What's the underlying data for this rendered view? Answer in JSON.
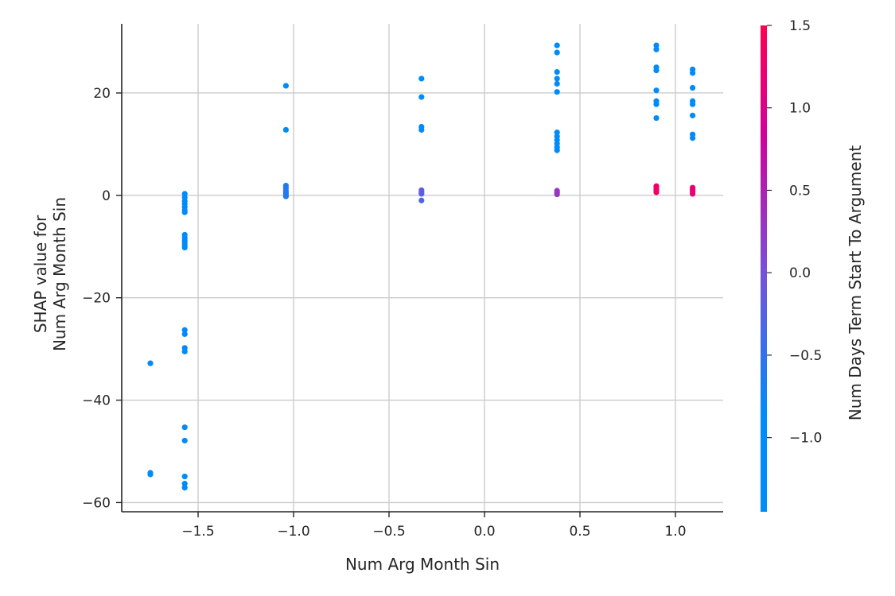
{
  "chart_data": {
    "type": "scatter",
    "xlabel": "Num  Arg Month Sin",
    "ylabel": [
      "SHAP value for",
      "Num  Arg Month Sin"
    ],
    "xlim": [
      -1.9,
      1.25
    ],
    "ylim": [
      -61.8,
      33.5
    ],
    "x_ticks": [
      -1.5,
      -1.0,
      -0.5,
      0.0,
      0.5,
      1.0
    ],
    "x_tick_labels": [
      "−1.5",
      "−1.0",
      "−0.5",
      "0.0",
      "0.5",
      "1.0"
    ],
    "y_ticks": [
      20,
      0,
      -20,
      -40,
      -60
    ],
    "y_tick_labels": [
      "20",
      "0",
      "−20",
      "−40",
      "−60"
    ],
    "grid": true,
    "colorbar": {
      "label": "Num  Days Term Start To Argument",
      "range": [
        -1.45,
        1.5
      ],
      "ticks": [
        1.5,
        1.0,
        0.5,
        0.0,
        -0.5,
        -1.0
      ],
      "tick_labels": [
        "1.5",
        "1.0",
        "0.5",
        "0.0",
        "−0.5",
        "−1.0"
      ],
      "colors": [
        "#008bfb",
        "#ff0052"
      ]
    },
    "points": [
      {
        "x": -1.75,
        "y": -32.8,
        "c": -1.2
      },
      {
        "x": -1.75,
        "y": -54.2,
        "c": -1.2
      },
      {
        "x": -1.75,
        "y": -54.5,
        "c": -1.2
      },
      {
        "x": -1.57,
        "y": 0.3,
        "c": -1.2
      },
      {
        "x": -1.57,
        "y": -0.4,
        "c": -1.2
      },
      {
        "x": -1.57,
        "y": -1.1,
        "c": -1.2
      },
      {
        "x": -1.57,
        "y": -1.7,
        "c": -1.2
      },
      {
        "x": -1.57,
        "y": -2.3,
        "c": -1.2
      },
      {
        "x": -1.57,
        "y": -2.9,
        "c": -1.2
      },
      {
        "x": -1.57,
        "y": -3.3,
        "c": -1.2
      },
      {
        "x": -1.57,
        "y": -7.7,
        "c": -1.2
      },
      {
        "x": -1.57,
        "y": -8.3,
        "c": -1.2
      },
      {
        "x": -1.57,
        "y": -8.8,
        "c": -1.2
      },
      {
        "x": -1.57,
        "y": -9.3,
        "c": -1.2
      },
      {
        "x": -1.57,
        "y": -9.8,
        "c": -1.2
      },
      {
        "x": -1.57,
        "y": -10.2,
        "c": -1.2
      },
      {
        "x": -1.57,
        "y": -26.3,
        "c": -1.2
      },
      {
        "x": -1.57,
        "y": -27.1,
        "c": -1.2
      },
      {
        "x": -1.57,
        "y": -29.8,
        "c": -1.2
      },
      {
        "x": -1.57,
        "y": -30.5,
        "c": -1.2
      },
      {
        "x": -1.57,
        "y": -45.3,
        "c": -1.2
      },
      {
        "x": -1.57,
        "y": -47.9,
        "c": -1.2
      },
      {
        "x": -1.57,
        "y": -54.9,
        "c": -1.2
      },
      {
        "x": -1.57,
        "y": -56.3,
        "c": -1.2
      },
      {
        "x": -1.57,
        "y": -57.1,
        "c": -1.2
      },
      {
        "x": -1.04,
        "y": 21.4,
        "c": -1.2
      },
      {
        "x": -1.04,
        "y": 12.8,
        "c": -1.2
      },
      {
        "x": -1.04,
        "y": 1.9,
        "c": -0.6
      },
      {
        "x": -1.04,
        "y": 1.4,
        "c": -0.6
      },
      {
        "x": -1.04,
        "y": 0.9,
        "c": -0.6
      },
      {
        "x": -1.04,
        "y": 0.5,
        "c": -0.6
      },
      {
        "x": -1.04,
        "y": 0.1,
        "c": -0.6
      },
      {
        "x": -1.04,
        "y": -0.2,
        "c": -0.6
      },
      {
        "x": -0.33,
        "y": 22.8,
        "c": -1.2
      },
      {
        "x": -0.33,
        "y": 19.2,
        "c": -1.2
      },
      {
        "x": -0.33,
        "y": 13.4,
        "c": -1.2
      },
      {
        "x": -0.33,
        "y": 12.8,
        "c": -1.2
      },
      {
        "x": -0.33,
        "y": 1.0,
        "c": -0.2
      },
      {
        "x": -0.33,
        "y": 0.6,
        "c": -0.2
      },
      {
        "x": -0.33,
        "y": 0.3,
        "c": -0.2
      },
      {
        "x": -0.33,
        "y": -1.0,
        "c": -0.3
      },
      {
        "x": 0.38,
        "y": 29.3,
        "c": -1.2
      },
      {
        "x": 0.38,
        "y": 27.9,
        "c": -1.2
      },
      {
        "x": 0.38,
        "y": 24.1,
        "c": -1.2
      },
      {
        "x": 0.38,
        "y": 22.8,
        "c": -1.2
      },
      {
        "x": 0.38,
        "y": 21.8,
        "c": -1.2
      },
      {
        "x": 0.38,
        "y": 20.2,
        "c": -1.2
      },
      {
        "x": 0.38,
        "y": 12.3,
        "c": -1.2
      },
      {
        "x": 0.38,
        "y": 11.5,
        "c": -1.2
      },
      {
        "x": 0.38,
        "y": 10.8,
        "c": -1.2
      },
      {
        "x": 0.38,
        "y": 10.1,
        "c": -1.2
      },
      {
        "x": 0.38,
        "y": 9.4,
        "c": -1.2
      },
      {
        "x": 0.38,
        "y": 8.8,
        "c": -1.2
      },
      {
        "x": 0.38,
        "y": 0.9,
        "c": 0.3
      },
      {
        "x": 0.38,
        "y": 0.5,
        "c": 0.3
      },
      {
        "x": 0.38,
        "y": 0.2,
        "c": 0.3
      },
      {
        "x": 0.9,
        "y": 29.3,
        "c": -1.2
      },
      {
        "x": 0.9,
        "y": 28.5,
        "c": -1.2
      },
      {
        "x": 0.9,
        "y": 25.0,
        "c": -1.2
      },
      {
        "x": 0.9,
        "y": 24.4,
        "c": -1.2
      },
      {
        "x": 0.9,
        "y": 20.5,
        "c": -1.2
      },
      {
        "x": 0.9,
        "y": 18.4,
        "c": -1.2
      },
      {
        "x": 0.9,
        "y": 17.8,
        "c": -1.2
      },
      {
        "x": 0.9,
        "y": 15.1,
        "c": -1.2
      },
      {
        "x": 0.9,
        "y": 1.8,
        "c": 1.3
      },
      {
        "x": 0.9,
        "y": 1.4,
        "c": 1.3
      },
      {
        "x": 0.9,
        "y": 1.0,
        "c": 1.3
      },
      {
        "x": 0.9,
        "y": 0.6,
        "c": 1.3
      },
      {
        "x": 1.09,
        "y": 24.6,
        "c": -1.2
      },
      {
        "x": 1.09,
        "y": 23.9,
        "c": -1.2
      },
      {
        "x": 1.09,
        "y": 21.0,
        "c": -1.2
      },
      {
        "x": 1.09,
        "y": 18.4,
        "c": -1.2
      },
      {
        "x": 1.09,
        "y": 17.8,
        "c": -1.2
      },
      {
        "x": 1.09,
        "y": 15.6,
        "c": -1.2
      },
      {
        "x": 1.09,
        "y": 11.9,
        "c": -1.2
      },
      {
        "x": 1.09,
        "y": 11.2,
        "c": -1.2
      },
      {
        "x": 1.09,
        "y": 1.5,
        "c": 1.2
      },
      {
        "x": 1.09,
        "y": 1.1,
        "c": 1.2
      },
      {
        "x": 1.09,
        "y": 0.7,
        "c": 1.2
      },
      {
        "x": 1.09,
        "y": 0.3,
        "c": 1.2
      }
    ]
  }
}
